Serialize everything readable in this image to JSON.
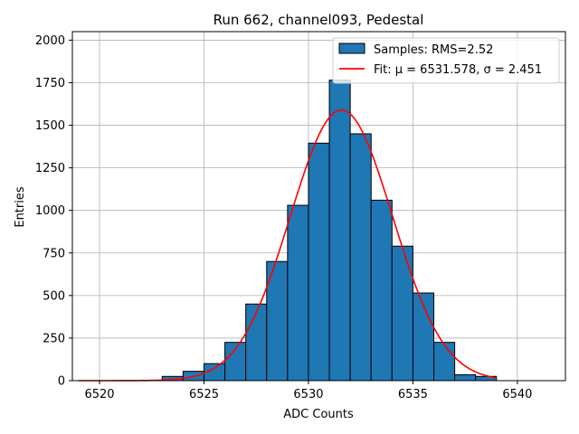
{
  "chart_data": {
    "type": "bar",
    "title": "Run 662, channel093, Pedestal",
    "xlabel": "ADC Counts",
    "ylabel": "Entries",
    "xlim": [
      6518.7,
      6542.3
    ],
    "ylim": [
      0,
      2050
    ],
    "grid": true,
    "legend_position": "top-right",
    "x_ticks": [
      6520,
      6525,
      6530,
      6535,
      6540
    ],
    "x_tick_labels": [
      "6520",
      "6525",
      "6530",
      "6535",
      "6540"
    ],
    "y_ticks": [
      0,
      250,
      500,
      750,
      1000,
      1250,
      1500,
      1750,
      2000
    ],
    "y_tick_labels": [
      "0",
      "250",
      "500",
      "750",
      "1000",
      "1250",
      "1500",
      "1750",
      "2000"
    ],
    "histogram": {
      "name": "Samples: RMS=2.52",
      "color": "#1f77b4",
      "edge_color": "#000000",
      "bin_edges": [
        6523,
        6524,
        6525,
        6526,
        6527,
        6528,
        6529,
        6530,
        6531,
        6532,
        6533,
        6534,
        6535,
        6536,
        6537,
        6538,
        6539
      ],
      "counts": [
        25,
        55,
        100,
        225,
        450,
        700,
        1030,
        1395,
        1765,
        1450,
        1060,
        790,
        515,
        225,
        35,
        25
      ]
    },
    "fit": {
      "name": "Fit: μ = 6531.578, σ = 2.451",
      "color": "#ff0000",
      "mu": 6531.578,
      "sigma": 2.451,
      "amplitude": 1590,
      "x_range": [
        6519,
        6539
      ]
    }
  }
}
